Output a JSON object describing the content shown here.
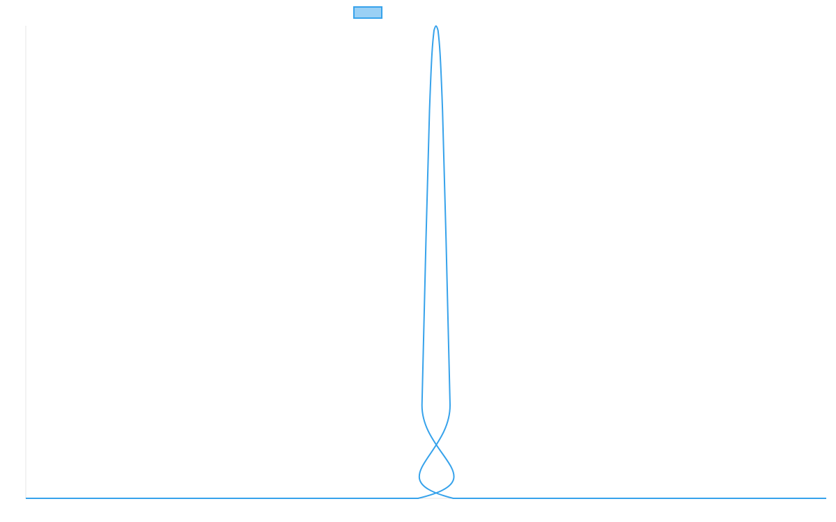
{
  "chart_data": {
    "type": "line",
    "title": "",
    "xlabel": "",
    "ylabel": "",
    "grid": false,
    "legend": {
      "placement": "top-center",
      "entries": [
        {
          "name": "",
          "color": "#36a2eb",
          "fill": "#9ad0f5"
        }
      ]
    },
    "xlim": [
      0,
      100
    ],
    "ylim": [
      0,
      1
    ],
    "series": [
      {
        "name": "",
        "color": "#36a2eb",
        "x": [
          0,
          49.0,
          49.5,
          50.0,
          50.5,
          51.0,
          51.5,
          52.0,
          52.5,
          53.0,
          53.4,
          100
        ],
        "y": [
          0,
          0,
          0.2,
          0.55,
          0.85,
          0.99,
          0.99,
          0.85,
          0.55,
          0.2,
          0,
          0
        ]
      }
    ]
  }
}
